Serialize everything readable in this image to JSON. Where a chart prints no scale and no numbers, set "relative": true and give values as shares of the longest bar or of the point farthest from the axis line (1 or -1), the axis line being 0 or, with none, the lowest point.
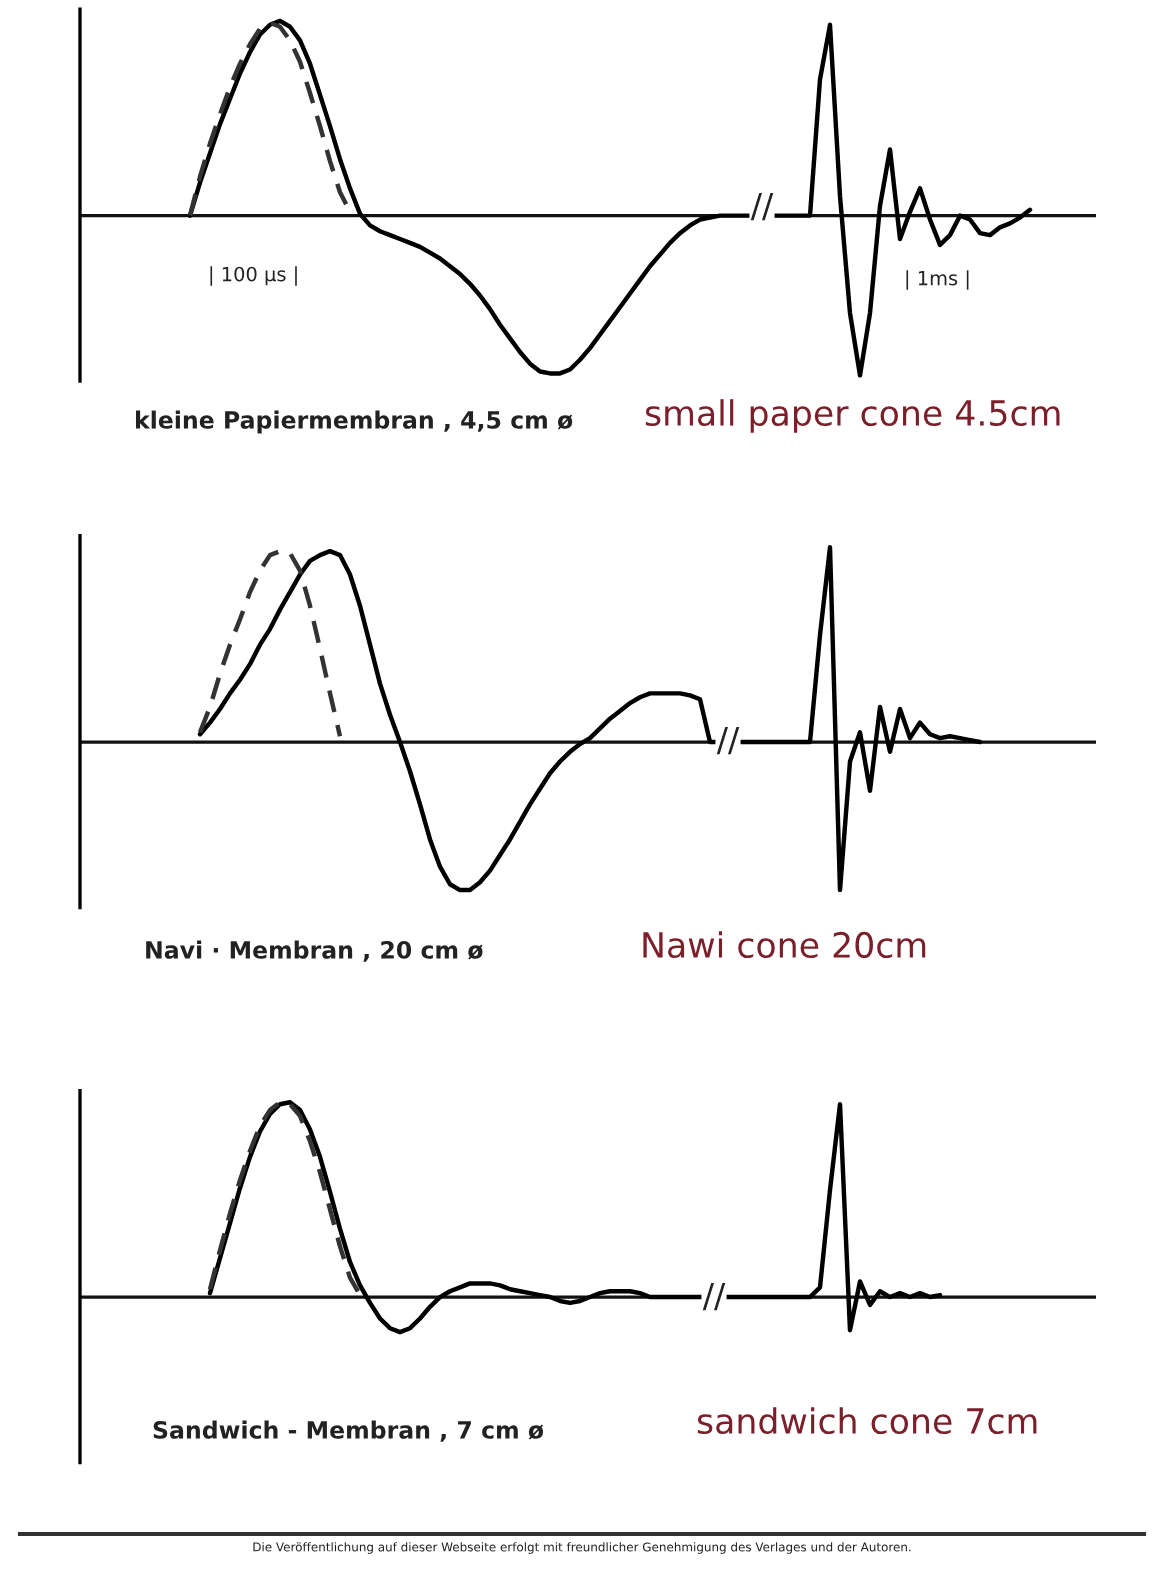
{
  "chart_data": [
    {
      "type": "line",
      "relative": true,
      "categories": [
        null,
        null,
        null,
        null,
        null,
        null,
        null,
        null,
        null,
        null,
        null,
        null,
        null,
        null,
        null,
        null,
        null,
        null,
        null,
        null,
        null,
        null,
        null,
        null,
        null,
        null,
        null,
        null,
        null,
        null,
        null,
        null,
        null,
        null,
        null,
        null,
        null,
        null,
        null,
        null,
        null,
        null,
        null,
        null,
        null,
        null,
        null,
        null,
        null,
        null,
        null,
        null,
        null,
        null,
        null,
        null,
        null,
        null,
        null,
        null,
        null,
        null,
        null,
        null,
        null,
        null,
        null,
        null,
        null,
        null,
        null,
        null,
        null,
        null,
        null,
        null,
        null,
        null,
        null,
        null,
        null,
        null,
        null,
        null,
        null,
        null,
        null,
        null,
        null,
        null,
        null,
        null,
        null,
        null,
        null,
        null,
        null,
        null,
        null,
        null,
        null,
        null
      ],
      "series": [
        {
          "color": "#000000",
          "line_style": "solid",
          "values": [
            null,
            null,
            null,
            null,
            null,
            null,
            null,
            null,
            null,
            null,
            null,
            0,
            0.17,
            0.32,
            0.47,
            0.6,
            0.73,
            0.84,
            0.93,
            0.98,
            1.0,
            0.97,
            0.9,
            0.78,
            0.62,
            0.46,
            0.29,
            0.14,
            0.01,
            -0.05,
            -0.08,
            -0.1,
            -0.12,
            -0.14,
            -0.16,
            -0.19,
            -0.22,
            -0.26,
            -0.3,
            -0.35,
            -0.41,
            -0.48,
            -0.56,
            -0.63,
            -0.7,
            -0.76,
            -0.8,
            -0.81,
            -0.81,
            -0.79,
            -0.74,
            -0.68,
            -0.61,
            -0.54,
            -0.47,
            -0.4,
            -0.33,
            -0.26,
            -0.2,
            -0.14,
            -0.09,
            -0.05,
            -0.02,
            -0.01,
            0,
            0,
            0,
            0,
            0,
            0,
            0,
            0,
            0,
            0,
            0.7,
            0.98,
            0.1,
            -0.5,
            -0.82,
            -0.5,
            0.05,
            0.34,
            -0.12,
            0.02,
            0.14,
            -0.02,
            -0.15,
            -0.1,
            0.0,
            -0.02,
            -0.09,
            -0.1,
            -0.06,
            -0.04,
            -0.01,
            0.03,
            null,
            null,
            null,
            null,
            null,
            null
          ]
        },
        {
          "color": "#333333",
          "line_style": "dashed",
          "values": [
            null,
            null,
            null,
            null,
            null,
            null,
            null,
            null,
            null,
            null,
            null,
            0,
            0.2,
            0.37,
            0.52,
            0.66,
            0.78,
            0.88,
            0.96,
            0.99,
            0.97,
            0.9,
            0.79,
            0.63,
            0.46,
            0.28,
            0.12,
            0.02,
            null,
            null,
            null,
            null,
            null,
            null,
            null,
            null,
            null,
            null,
            null,
            null,
            null,
            null,
            null,
            null,
            null,
            null,
            null,
            null,
            null,
            null,
            null,
            null,
            null,
            null,
            null,
            null,
            null,
            null,
            null,
            null,
            null,
            null,
            null,
            null,
            null,
            null,
            null,
            null,
            null,
            null,
            null,
            null,
            null,
            null,
            null,
            null,
            null,
            null,
            null,
            null,
            null,
            null,
            null,
            null,
            null,
            null,
            null,
            null,
            null,
            null,
            null,
            null,
            null,
            null,
            null,
            null,
            null,
            null,
            null,
            null,
            null,
            null
          ]
        }
      ],
      "annotations": [
        "| 100 µs |",
        "| 1ms |",
        "kleine Papiermembran , 4,5 cm ø",
        "small paper cone 4.5cm",
        "//"
      ]
    },
    {
      "type": "line",
      "relative": true,
      "categories": [
        null,
        null,
        null,
        null,
        null,
        null,
        null,
        null,
        null,
        null,
        null,
        null,
        null,
        null,
        null,
        null,
        null,
        null,
        null,
        null,
        null,
        null,
        null,
        null,
        null,
        null,
        null,
        null,
        null,
        null,
        null,
        null,
        null,
        null,
        null,
        null,
        null,
        null,
        null,
        null,
        null,
        null,
        null,
        null,
        null,
        null,
        null,
        null,
        null,
        null,
        null,
        null,
        null,
        null,
        null,
        null,
        null,
        null,
        null,
        null,
        null,
        null,
        null,
        null,
        null,
        null,
        null,
        null,
        null,
        null,
        null,
        null,
        null,
        null,
        null,
        null,
        null,
        null,
        null,
        null,
        null,
        null,
        null,
        null,
        null,
        null,
        null,
        null,
        null,
        null,
        null,
        null,
        null,
        null,
        null,
        null,
        null,
        null,
        null,
        null,
        null,
        null
      ],
      "series": [
        {
          "color": "#000000",
          "line_style": "solid",
          "values": [
            null,
            null,
            null,
            null,
            null,
            null,
            null,
            null,
            null,
            null,
            null,
            null,
            0.04,
            0.1,
            0.17,
            0.25,
            0.32,
            0.4,
            0.5,
            0.58,
            0.68,
            0.77,
            0.86,
            0.93,
            0.96,
            0.98,
            0.96,
            0.86,
            0.7,
            0.5,
            0.3,
            0.14,
            0.0,
            -0.15,
            -0.32,
            -0.5,
            -0.64,
            -0.73,
            -0.76,
            -0.76,
            -0.72,
            -0.66,
            -0.58,
            -0.5,
            -0.41,
            -0.32,
            -0.24,
            -0.16,
            -0.1,
            -0.05,
            -0.01,
            0.02,
            0.07,
            0.12,
            0.16,
            0.2,
            0.23,
            0.25,
            0.25,
            0.25,
            0.25,
            0.24,
            0.22,
            0,
            0,
            0,
            0,
            0,
            0,
            0,
            0,
            0,
            0,
            0,
            0.55,
            1.0,
            -0.76,
            -0.1,
            0.05,
            -0.25,
            0.18,
            -0.05,
            0.17,
            0.02,
            0.1,
            0.04,
            0.02,
            0.03,
            0.02,
            0.01,
            0.0,
            null,
            null,
            null,
            null,
            null,
            null,
            null,
            null,
            null,
            null,
            null
          ]
        },
        {
          "color": "#333333",
          "line_style": "dashed",
          "values": [
            null,
            null,
            null,
            null,
            null,
            null,
            null,
            null,
            null,
            null,
            null,
            null,
            0.05,
            0.18,
            0.35,
            0.5,
            0.63,
            0.77,
            0.88,
            0.96,
            0.98,
            0.97,
            0.88,
            0.7,
            0.48,
            0.25,
            0.03,
            null,
            null,
            null,
            null,
            null,
            null,
            null,
            null,
            null,
            null,
            null,
            null,
            null,
            null,
            null,
            null,
            null,
            null,
            null,
            null,
            null,
            null,
            null,
            null,
            null,
            null,
            null,
            null,
            null,
            null,
            null,
            null,
            null,
            null,
            null,
            null,
            null,
            null,
            null,
            null,
            null,
            null,
            null,
            null,
            null,
            null,
            null,
            null,
            null,
            null,
            null,
            null,
            null,
            null,
            null,
            null,
            null,
            null,
            null,
            null,
            null,
            null,
            null,
            null,
            null,
            null,
            null,
            null,
            null,
            null,
            null,
            null,
            null,
            null,
            null
          ]
        }
      ],
      "annotations": [
        "Navi · Membran , 20 cm ø",
        "Nawi cone 20cm",
        "//"
      ]
    },
    {
      "type": "line",
      "relative": true,
      "categories": [
        null,
        null,
        null,
        null,
        null,
        null,
        null,
        null,
        null,
        null,
        null,
        null,
        null,
        null,
        null,
        null,
        null,
        null,
        null,
        null,
        null,
        null,
        null,
        null,
        null,
        null,
        null,
        null,
        null,
        null,
        null,
        null,
        null,
        null,
        null,
        null,
        null,
        null,
        null,
        null,
        null,
        null,
        null,
        null,
        null,
        null,
        null,
        null,
        null,
        null,
        null,
        null,
        null,
        null,
        null,
        null,
        null,
        null,
        null,
        null,
        null,
        null,
        null,
        null,
        null,
        null,
        null,
        null,
        null,
        null,
        null,
        null,
        null,
        null,
        null,
        null,
        null,
        null,
        null,
        null,
        null,
        null,
        null,
        null,
        null,
        null,
        null,
        null,
        null,
        null,
        null,
        null,
        null,
        null,
        null,
        null,
        null,
        null,
        null,
        null,
        null,
        null
      ],
      "series": [
        {
          "color": "#000000",
          "line_style": "solid",
          "values": [
            null,
            null,
            null,
            null,
            null,
            null,
            null,
            null,
            null,
            null,
            null,
            null,
            null,
            0.02,
            0.2,
            0.38,
            0.56,
            0.72,
            0.85,
            0.94,
            0.99,
            1.0,
            0.96,
            0.86,
            0.72,
            0.54,
            0.35,
            0.18,
            0.06,
            -0.03,
            -0.11,
            -0.16,
            -0.18,
            -0.16,
            -0.11,
            -0.05,
            0.0,
            0.03,
            0.05,
            0.07,
            0.07,
            0.07,
            0.06,
            0.04,
            0.03,
            0.02,
            0.01,
            0.0,
            -0.02,
            -0.03,
            -0.02,
            0.0,
            0.02,
            0.03,
            0.03,
            0.03,
            0.02,
            0,
            0,
            0,
            0,
            0,
            0,
            0,
            0,
            0,
            0,
            0,
            0,
            0,
            0,
            0,
            0,
            0,
            0.05,
            0.55,
            0.99,
            -0.17,
            0.08,
            -0.04,
            0.03,
            0.0,
            0.02,
            0.0,
            0.02,
            0.0,
            0.01,
            null,
            null,
            null,
            null,
            null,
            null,
            null,
            null,
            null,
            null,
            null,
            null,
            null,
            null,
            null
          ]
        },
        {
          "color": "#333333",
          "line_style": "dashed",
          "values": [
            null,
            null,
            null,
            null,
            null,
            null,
            null,
            null,
            null,
            null,
            null,
            null,
            null,
            0.04,
            0.24,
            0.43,
            0.6,
            0.75,
            0.88,
            0.96,
            1.0,
            0.99,
            0.93,
            0.8,
            0.64,
            0.45,
            0.26,
            0.1,
            0.01,
            null,
            null,
            null,
            null,
            null,
            null,
            null,
            null,
            null,
            null,
            null,
            null,
            null,
            null,
            null,
            null,
            null,
            null,
            null,
            null,
            null,
            null,
            null,
            null,
            null,
            null,
            null,
            null,
            null,
            null,
            null,
            null,
            null,
            null,
            null,
            null,
            null,
            null,
            null,
            null,
            null,
            null,
            null,
            null,
            null,
            null,
            null,
            null,
            null,
            null,
            null,
            null,
            null,
            null,
            null,
            null,
            null,
            null,
            null,
            null,
            null,
            null,
            null,
            null,
            null,
            null,
            null,
            null,
            null,
            null,
            null,
            null,
            null
          ]
        }
      ],
      "annotations": [
        "Sandwich - Membran , 7 cm ø",
        "sandwich cone 7cm",
        "//",
        "Die Veröffentlichung auf dieser Webseite erfolgt mit freundlicher Genehmigung des Verlages und der Autoren."
      ]
    }
  ]
}
